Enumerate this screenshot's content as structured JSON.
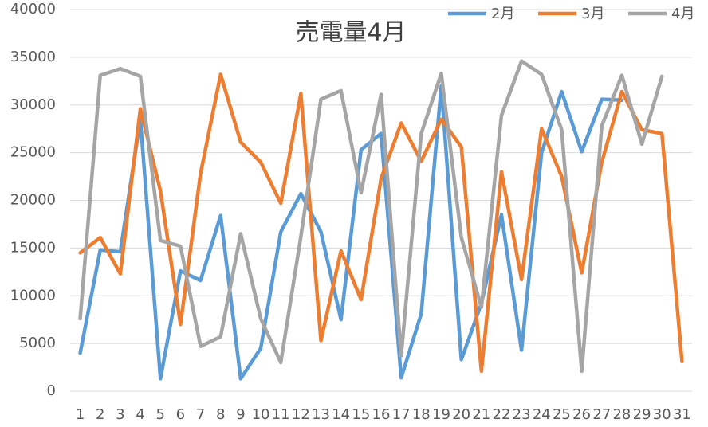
{
  "chart_data": {
    "type": "line",
    "title": "売電量4月",
    "categories": [
      "1",
      "2",
      "3",
      "4",
      "5",
      "6",
      "7",
      "8",
      "9",
      "10",
      "11",
      "12",
      "13",
      "14",
      "15",
      "16",
      "17",
      "18",
      "19",
      "20",
      "21",
      "22",
      "23",
      "24",
      "25",
      "26",
      "27",
      "28",
      "29",
      "30",
      "31"
    ],
    "series": [
      {
        "name": "2月",
        "color": "#5b9bd5",
        "values": [
          4000,
          14800,
          14600,
          28500,
          1300,
          12600,
          11600,
          18400,
          1300,
          4500,
          16700,
          20700,
          16700,
          7500,
          25300,
          27000,
          1400,
          8100,
          32000,
          3300,
          9200,
          18500,
          4300,
          25000,
          31400,
          25100,
          30600,
          30500,
          null,
          null,
          null
        ]
      },
      {
        "name": "3月",
        "color": "#ed7d31",
        "values": [
          14500,
          16100,
          12300,
          29600,
          21000,
          7000,
          22800,
          33200,
          26100,
          24000,
          19700,
          31200,
          5300,
          14700,
          9600,
          22300,
          28100,
          24100,
          28500,
          25600,
          2100,
          23000,
          11700,
          27500,
          22500,
          12400,
          24000,
          31400,
          27400,
          27000,
          3100
        ]
      },
      {
        "name": "4月",
        "color": "#a5a5a5",
        "values": [
          7600,
          33100,
          33800,
          33000,
          15800,
          15200,
          4700,
          5700,
          16500,
          7600,
          3000,
          16200,
          30600,
          31500,
          20800,
          31100,
          3700,
          27000,
          33300,
          16100,
          8800,
          28900,
          34600,
          33200,
          27400,
          2100,
          27800,
          33100,
          25900,
          33000,
          null
        ]
      }
    ],
    "ylim": [
      0,
      40000
    ],
    "yticks": [
      0,
      5000,
      10000,
      15000,
      20000,
      25000,
      30000,
      35000,
      40000
    ],
    "grid": true,
    "legend": "top-right"
  }
}
